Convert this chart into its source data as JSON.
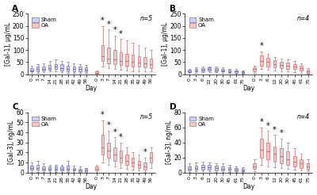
{
  "panels": [
    {
      "label": "A",
      "n_label": "n=5",
      "ylabel": "[Gal-1], μg/mL",
      "ylim": [
        0,
        250
      ],
      "yticks": [
        0,
        50,
        100,
        150,
        200,
        250
      ],
      "days": [
        "0",
        "3",
        "7",
        "14",
        "21",
        "28",
        "35",
        "42",
        "49",
        "56"
      ],
      "sham_boxes": [
        {
          "med": 15,
          "q1": 10,
          "q3": 25,
          "min": 5,
          "max": 35,
          "sig": false
        },
        {
          "med": 20,
          "q1": 12,
          "q3": 30,
          "min": 5,
          "max": 40,
          "sig": false
        },
        {
          "med": 22,
          "q1": 15,
          "q3": 32,
          "min": 8,
          "max": 45,
          "sig": false
        },
        {
          "med": 25,
          "q1": 18,
          "q3": 38,
          "min": 10,
          "max": 55,
          "sig": false
        },
        {
          "med": 30,
          "q1": 20,
          "q3": 42,
          "min": 10,
          "max": 60,
          "sig": false
        },
        {
          "med": 25,
          "q1": 15,
          "q3": 40,
          "min": 8,
          "max": 55,
          "sig": false
        },
        {
          "med": 22,
          "q1": 12,
          "q3": 35,
          "min": 5,
          "max": 50,
          "sig": false
        },
        {
          "med": 20,
          "q1": 12,
          "q3": 32,
          "min": 5,
          "max": 45,
          "sig": false
        },
        {
          "med": 20,
          "q1": 10,
          "q3": 30,
          "min": 5,
          "max": 42,
          "sig": false
        },
        {
          "med": 18,
          "q1": 10,
          "q3": 28,
          "min": 5,
          "max": 38,
          "sig": false
        }
      ],
      "oa_boxes": [
        {
          "med": 5,
          "q1": 2,
          "q3": 10,
          "min": 0,
          "max": 15,
          "sig": false
        },
        {
          "med": 75,
          "q1": 55,
          "q3": 120,
          "min": 30,
          "max": 200,
          "sig": true
        },
        {
          "med": 65,
          "q1": 45,
          "q3": 110,
          "min": 25,
          "max": 185,
          "sig": true
        },
        {
          "med": 60,
          "q1": 40,
          "q3": 100,
          "min": 20,
          "max": 160,
          "sig": true
        },
        {
          "med": 55,
          "q1": 38,
          "q3": 90,
          "min": 18,
          "max": 145,
          "sig": true
        },
        {
          "med": 55,
          "q1": 35,
          "q3": 85,
          "min": 15,
          "max": 140,
          "sig": false
        },
        {
          "med": 50,
          "q1": 32,
          "q3": 80,
          "min": 12,
          "max": 130,
          "sig": false
        },
        {
          "med": 48,
          "q1": 30,
          "q3": 75,
          "min": 12,
          "max": 120,
          "sig": false
        },
        {
          "med": 45,
          "q1": 28,
          "q3": 70,
          "min": 10,
          "max": 110,
          "sig": false
        },
        {
          "med": 42,
          "q1": 25,
          "q3": 65,
          "min": 10,
          "max": 100,
          "sig": false
        }
      ]
    },
    {
      "label": "B",
      "n_label": "n=4",
      "ylabel": "[Gal-1], μg/mL",
      "ylim": [
        0,
        250
      ],
      "yticks": [
        0,
        50,
        100,
        150,
        200,
        250
      ],
      "days": [
        "0",
        "3",
        "6",
        "12",
        "20",
        "30",
        "45",
        "61",
        "75"
      ],
      "sham_boxes": [
        {
          "med": 12,
          "q1": 8,
          "q3": 18,
          "min": 5,
          "max": 22,
          "sig": false
        },
        {
          "med": 15,
          "q1": 10,
          "q3": 22,
          "min": 6,
          "max": 28,
          "sig": false
        },
        {
          "med": 18,
          "q1": 12,
          "q3": 25,
          "min": 7,
          "max": 30,
          "sig": false
        },
        {
          "med": 20,
          "q1": 14,
          "q3": 27,
          "min": 8,
          "max": 32,
          "sig": false
        },
        {
          "med": 18,
          "q1": 12,
          "q3": 25,
          "min": 7,
          "max": 30,
          "sig": false
        },
        {
          "med": 15,
          "q1": 10,
          "q3": 22,
          "min": 5,
          "max": 28,
          "sig": false
        },
        {
          "med": 12,
          "q1": 8,
          "q3": 18,
          "min": 5,
          "max": 22,
          "sig": false
        },
        {
          "med": 10,
          "q1": 6,
          "q3": 15,
          "min": 3,
          "max": 20,
          "sig": false
        },
        {
          "med": 8,
          "q1": 5,
          "q3": 12,
          "min": 2,
          "max": 15,
          "sig": false
        }
      ],
      "oa_boxes": [
        {
          "med": 20,
          "q1": 10,
          "q3": 28,
          "min": 5,
          "max": 35,
          "sig": false
        },
        {
          "med": 55,
          "q1": 35,
          "q3": 78,
          "min": 20,
          "max": 95,
          "sig": true
        },
        {
          "med": 50,
          "q1": 32,
          "q3": 68,
          "min": 18,
          "max": 85,
          "sig": false
        },
        {
          "med": 42,
          "q1": 28,
          "q3": 58,
          "min": 15,
          "max": 72,
          "sig": false
        },
        {
          "med": 38,
          "q1": 25,
          "q3": 52,
          "min": 12,
          "max": 65,
          "sig": false
        },
        {
          "med": 35,
          "q1": 22,
          "q3": 48,
          "min": 10,
          "max": 60,
          "sig": false
        },
        {
          "med": 30,
          "q1": 20,
          "q3": 42,
          "min": 8,
          "max": 55,
          "sig": false
        },
        {
          "med": 25,
          "q1": 15,
          "q3": 35,
          "min": 5,
          "max": 45,
          "sig": false
        },
        {
          "med": 10,
          "q1": 5,
          "q3": 18,
          "min": 2,
          "max": 25,
          "sig": false
        }
      ]
    },
    {
      "label": "C",
      "n_label": "n=5",
      "ylabel": "[Gal-3], ng/mL",
      "ylim": [
        0,
        60
      ],
      "yticks": [
        0,
        10,
        20,
        30,
        40,
        50,
        60
      ],
      "days": [
        "0",
        "3",
        "7",
        "14",
        "21",
        "28",
        "35",
        "42",
        "49",
        "56"
      ],
      "sham_boxes": [
        {
          "med": 5,
          "q1": 3,
          "q3": 7,
          "min": 1,
          "max": 10,
          "sig": false
        },
        {
          "med": 5,
          "q1": 3,
          "q3": 8,
          "min": 1,
          "max": 12,
          "sig": false
        },
        {
          "med": 4,
          "q1": 2,
          "q3": 6,
          "min": 1,
          "max": 9,
          "sig": false
        },
        {
          "med": 4,
          "q1": 2,
          "q3": 6,
          "min": 1,
          "max": 8,
          "sig": false
        },
        {
          "med": 4,
          "q1": 2,
          "q3": 6,
          "min": 1,
          "max": 8,
          "sig": false
        },
        {
          "med": 4,
          "q1": 2,
          "q3": 6,
          "min": 1,
          "max": 8,
          "sig": false
        },
        {
          "med": 4,
          "q1": 2,
          "q3": 7,
          "min": 1,
          "max": 12,
          "sig": false
        },
        {
          "med": 3,
          "q1": 2,
          "q3": 5,
          "min": 1,
          "max": 7,
          "sig": false
        },
        {
          "med": 2,
          "q1": 1,
          "q3": 4,
          "min": 0,
          "max": 6,
          "sig": false
        },
        {
          "med": 2,
          "q1": 1,
          "q3": 4,
          "min": 0,
          "max": 5,
          "sig": false
        }
      ],
      "oa_boxes": [
        {
          "med": 4,
          "q1": 2,
          "q3": 6,
          "min": 1,
          "max": 8,
          "sig": false
        },
        {
          "med": 25,
          "q1": 18,
          "q3": 38,
          "min": 10,
          "max": 52,
          "sig": true
        },
        {
          "med": 22,
          "q1": 15,
          "q3": 30,
          "min": 8,
          "max": 42,
          "sig": true
        },
        {
          "med": 18,
          "q1": 12,
          "q3": 25,
          "min": 6,
          "max": 35,
          "sig": true
        },
        {
          "med": 15,
          "q1": 10,
          "q3": 22,
          "min": 5,
          "max": 30,
          "sig": true
        },
        {
          "med": 12,
          "q1": 8,
          "q3": 18,
          "min": 4,
          "max": 25,
          "sig": false
        },
        {
          "med": 10,
          "q1": 6,
          "q3": 15,
          "min": 3,
          "max": 20,
          "sig": false
        },
        {
          "med": 8,
          "q1": 5,
          "q3": 12,
          "min": 2,
          "max": 18,
          "sig": false
        },
        {
          "med": 6,
          "q1": 3,
          "q3": 10,
          "min": 1,
          "max": 15,
          "sig": true
        },
        {
          "med": 15,
          "q1": 10,
          "q3": 20,
          "min": 5,
          "max": 25,
          "sig": false
        }
      ]
    },
    {
      "label": "D",
      "n_label": "n=4",
      "ylabel": "[Gal-3], ng/mL",
      "ylim": [
        0,
        80
      ],
      "yticks": [
        0,
        20,
        40,
        60,
        80
      ],
      "days": [
        "0",
        "3",
        "6",
        "12",
        "20",
        "30",
        "45",
        "61",
        "75"
      ],
      "sham_boxes": [
        {
          "med": 5,
          "q1": 3,
          "q3": 8,
          "min": 1,
          "max": 12,
          "sig": false
        },
        {
          "med": 6,
          "q1": 4,
          "q3": 9,
          "min": 2,
          "max": 14,
          "sig": false
        },
        {
          "med": 7,
          "q1": 4,
          "q3": 10,
          "min": 2,
          "max": 15,
          "sig": false
        },
        {
          "med": 7,
          "q1": 4,
          "q3": 10,
          "min": 2,
          "max": 14,
          "sig": false
        },
        {
          "med": 6,
          "q1": 3,
          "q3": 9,
          "min": 1,
          "max": 13,
          "sig": false
        },
        {
          "med": 5,
          "q1": 3,
          "q3": 8,
          "min": 1,
          "max": 12,
          "sig": false
        },
        {
          "med": 5,
          "q1": 3,
          "q3": 7,
          "min": 1,
          "max": 10,
          "sig": false
        },
        {
          "med": 4,
          "q1": 2,
          "q3": 6,
          "min": 1,
          "max": 8,
          "sig": false
        },
        {
          "med": 3,
          "q1": 2,
          "q3": 5,
          "min": 1,
          "max": 7,
          "sig": false
        }
      ],
      "oa_boxes": [
        {
          "med": 8,
          "q1": 5,
          "q3": 12,
          "min": 2,
          "max": 18,
          "sig": false
        },
        {
          "med": 30,
          "q1": 20,
          "q3": 45,
          "min": 10,
          "max": 60,
          "sig": true
        },
        {
          "med": 28,
          "q1": 18,
          "q3": 40,
          "min": 8,
          "max": 55,
          "sig": true
        },
        {
          "med": 25,
          "q1": 15,
          "q3": 35,
          "min": 7,
          "max": 50,
          "sig": true
        },
        {
          "med": 22,
          "q1": 12,
          "q3": 32,
          "min": 6,
          "max": 45,
          "sig": true
        },
        {
          "med": 18,
          "q1": 10,
          "q3": 28,
          "min": 5,
          "max": 40,
          "sig": false
        },
        {
          "med": 15,
          "q1": 8,
          "q3": 22,
          "min": 4,
          "max": 32,
          "sig": false
        },
        {
          "med": 12,
          "q1": 6,
          "q3": 18,
          "min": 3,
          "max": 25,
          "sig": false
        },
        {
          "med": 8,
          "q1": 4,
          "q3": 12,
          "min": 2,
          "max": 18,
          "sig": false
        }
      ]
    }
  ],
  "sham_edge": "#7070b8",
  "oa_edge": "#c87070",
  "sham_face": "#d0d0f0",
  "oa_face": "#f0c8c8",
  "bg_color": "#ffffff"
}
